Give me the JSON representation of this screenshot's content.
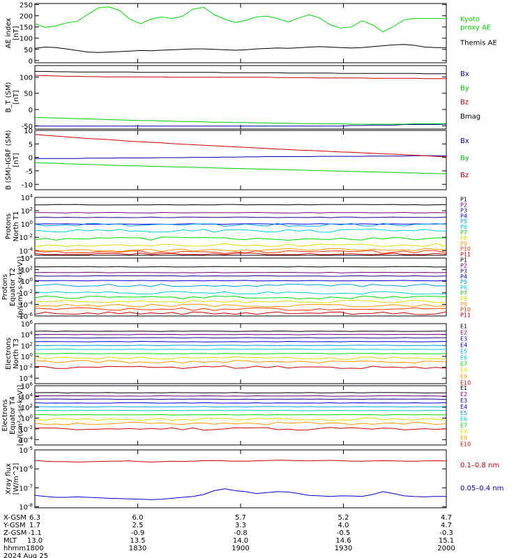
{
  "chart_data": [
    {
      "type": "line",
      "ylabel": "AE index\n[nT]",
      "yticks": [
        "250",
        "200",
        "150",
        "100",
        "50",
        "0"
      ],
      "ylim": [
        -10,
        255
      ],
      "series": [
        {
          "name": "Kyoto\nproxy AE",
          "color": "#00dd00",
          "values": [
            165,
            148,
            155,
            168,
            175,
            205,
            235,
            240,
            225,
            185,
            165,
            185,
            195,
            188,
            198,
            230,
            238,
            205,
            185,
            170,
            180,
            195,
            198,
            188,
            172,
            190,
            205,
            190,
            160,
            145,
            150,
            178,
            160,
            128,
            152,
            182,
            188,
            188,
            188,
            188
          ]
        },
        {
          "name": "Themis AE",
          "color": "#000000",
          "values": [
            55,
            60,
            58,
            52,
            45,
            38,
            36,
            38,
            40,
            42,
            45,
            44,
            46,
            48,
            50,
            52,
            52,
            50,
            48,
            46,
            48,
            52,
            54,
            56,
            55,
            57,
            60,
            62,
            60,
            58,
            56,
            58,
            62,
            66,
            70,
            72,
            68,
            60,
            58,
            58
          ]
        }
      ]
    },
    {
      "type": "line",
      "ylabel": "B_T (SM)\n[nT]",
      "yticks": [
        "100",
        "50",
        "0",
        "-50"
      ],
      "ylim": [
        -60,
        135
      ],
      "series": [
        {
          "name": "Bx",
          "color": "#0000aa",
          "values": [
            -51,
            -51,
            -51,
            -51,
            -51,
            -51,
            -51,
            -51,
            -51,
            -51,
            -51,
            -51,
            -51,
            -51,
            -51,
            -51,
            -51,
            -51,
            -51,
            -51,
            -51,
            -51,
            -51,
            -51,
            -51,
            -51,
            -51,
            -51,
            -51,
            -51,
            -49,
            -49,
            -48,
            -48,
            -48,
            -46,
            -46,
            -46,
            -46,
            -45
          ]
        },
        {
          "name": "By",
          "color": "#00cc00",
          "values": [
            -24,
            -25,
            -26,
            -27,
            -28,
            -29,
            -30,
            -31,
            -32,
            -33,
            -34,
            -34,
            -35,
            -36,
            -37,
            -37,
            -38,
            -39,
            -39,
            -40,
            -40,
            -41,
            -41,
            -42,
            -42,
            -43,
            -43,
            -44,
            -44,
            -44,
            -45,
            -45,
            -45,
            -45,
            -45,
            -45,
            -44,
            -44,
            -44,
            -43
          ]
        },
        {
          "name": "Bz",
          "color": "#cc0000",
          "values": [
            105,
            104,
            103,
            102,
            102,
            101,
            101,
            100,
            100,
            100,
            100,
            100,
            100,
            99,
            99,
            99,
            99,
            99,
            99,
            99,
            99,
            99,
            99,
            98,
            98,
            98,
            98,
            97,
            97,
            97,
            97,
            97,
            96,
            96,
            96,
            96,
            96,
            95,
            95,
            95
          ]
        },
        {
          "name": "Bmag",
          "color": "#000000",
          "values": [
            117,
            117,
            116,
            116,
            115,
            115,
            115,
            115,
            115,
            115,
            114,
            114,
            114,
            114,
            114,
            114,
            114,
            114,
            113,
            113,
            113,
            113,
            113,
            113,
            112,
            112,
            112,
            112,
            112,
            111,
            111,
            111,
            111,
            111,
            111,
            111,
            111,
            110,
            110,
            110
          ]
        }
      ]
    },
    {
      "type": "line",
      "ylabel": "B (SM)-IGRF (SM)\n[nT]",
      "yticks": [
        "10",
        "5",
        "0",
        "-5",
        "-10"
      ],
      "ylim": [
        -12,
        10
      ],
      "series": [
        {
          "name": "Bx",
          "color": "#0000aa",
          "values": [
            -0.4,
            -0.4,
            -0.4,
            -0.4,
            -0.4,
            -0.3,
            -0.3,
            -0.3,
            -0.2,
            -0.2,
            -0.2,
            -0.2,
            -0.1,
            -0.1,
            -0.1,
            0,
            0,
            0,
            0.1,
            0.1,
            0.2,
            0.2,
            0.3,
            0.3,
            0.3,
            0.3,
            0.3,
            0.4,
            0.4,
            0.4,
            0.4,
            0.4,
            0.5,
            0.5,
            0.5,
            0.5,
            0.6,
            0.6,
            0.6,
            0.6
          ]
        },
        {
          "name": "By",
          "color": "#00cc00",
          "values": [
            -2,
            -2.1,
            -2.2,
            -2.4,
            -2.5,
            -2.6,
            -2.7,
            -2.9,
            -3,
            -3.1,
            -3.2,
            -3.3,
            -3.4,
            -3.5,
            -3.6,
            -3.7,
            -3.8,
            -3.9,
            -4,
            -4.1,
            -4.2,
            -4.3,
            -4.4,
            -4.5,
            -4.6,
            -4.7,
            -4.8,
            -4.9,
            -5,
            -5.1,
            -5.2,
            -5.3,
            -5.4,
            -5.5,
            -5.6,
            -5.7,
            -5.8,
            -5.9,
            -6,
            -6.1
          ]
        },
        {
          "name": "Bz",
          "color": "#cc0000",
          "values": [
            8.5,
            8.2,
            7.9,
            7.6,
            7.3,
            7,
            6.8,
            6.6,
            6.3,
            6,
            5.8,
            5.6,
            5.4,
            5.1,
            4.9,
            4.7,
            4.5,
            4.3,
            4.1,
            3.9,
            3.7,
            3.5,
            3.3,
            3.1,
            2.9,
            2.7,
            2.6,
            2.4,
            2.2,
            2,
            1.9,
            1.7,
            1.5,
            1.3,
            1.2,
            1,
            0.8,
            0.6,
            0.4,
            0.2
          ]
        }
      ]
    },
    {
      "type": "line",
      "scale": "log",
      "ylabel": "Protons\nNorth T1",
      "yticks": [
        "10^4",
        "10^2",
        "10^0",
        "10^-2",
        "10^-4"
      ],
      "ylim": [
        -4.7,
        4
      ],
      "series": [
        {
          "name": "P1",
          "color": "#000000",
          "level": 2.9
        },
        {
          "name": "P2",
          "color": "#7a0080",
          "level": 1.7
        },
        {
          "name": "P3",
          "color": "#1a0090",
          "level": 1.0
        },
        {
          "name": "P4",
          "color": "#0000dd",
          "level": 0.0
        },
        {
          "name": "P5",
          "color": "#00a0e0",
          "level": -0.1
        },
        {
          "name": "P6",
          "color": "#00d0d0",
          "level": -1.0
        },
        {
          "name": "P7",
          "color": "#00dd00",
          "level": -2.2
        },
        {
          "name": "P8",
          "color": "#dddd00",
          "level": -3.2
        },
        {
          "name": "P9",
          "color": "#ff9900",
          "level": -3.9
        },
        {
          "name": "P10",
          "color": "#ff3300",
          "level": -4.2
        },
        {
          "name": "P11",
          "color": "#cc0000",
          "level": -4.6
        }
      ]
    },
    {
      "type": "line",
      "scale": "log",
      "ylabel": "Protons\nEquator T2\n[p/(cm²-s-sr-keV)]",
      "yticks": [
        "10^4",
        "10^2",
        "10^0",
        "10^-2",
        "10^-4",
        "10^-6"
      ],
      "ylim": [
        -6,
        4
      ],
      "series": [
        {
          "name": "P1",
          "color": "#000000",
          "level": 2.5
        },
        {
          "name": "P2",
          "color": "#7a0080",
          "level": 1.5
        },
        {
          "name": "P3",
          "color": "#1a0090",
          "level": 0.9
        },
        {
          "name": "P4",
          "color": "#0000dd",
          "level": 0.1
        },
        {
          "name": "P5",
          "color": "#00a0e0",
          "level": -0.7
        },
        {
          "name": "P6",
          "color": "#00d0d0",
          "level": -2.0
        },
        {
          "name": "P7",
          "color": "#00dd00",
          "level": -2.8
        },
        {
          "name": "P8",
          "color": "#dddd00",
          "level": -3.5
        },
        {
          "name": "P9",
          "color": "#ff9900",
          "level": -4.2
        },
        {
          "name": "P10",
          "color": "#ff3300",
          "level": -4.8
        },
        {
          "name": "P11",
          "color": "#cc0000",
          "level": -5.5
        }
      ]
    },
    {
      "type": "line",
      "scale": "log",
      "ylabel": "Electrons\nNorth T3",
      "yticks": [
        "10^6",
        "10^4",
        "10^2",
        "10^0",
        "10^-2",
        "10^-4"
      ],
      "ylim": [
        -5,
        6
      ],
      "series": [
        {
          "name": "E1",
          "color": "#000000",
          "level": 4.6
        },
        {
          "name": "E2",
          "color": "#7a0080",
          "level": 4.0
        },
        {
          "name": "E3",
          "color": "#1a0090",
          "level": 3.4
        },
        {
          "name": "E4",
          "color": "#0000dd",
          "level": 2.7
        },
        {
          "name": "E5",
          "color": "#00a0e0",
          "level": 2.0
        },
        {
          "name": "E6",
          "color": "#00d0d0",
          "level": 1.3
        },
        {
          "name": "E7",
          "color": "#00dd00",
          "level": 0.5
        },
        {
          "name": "E8",
          "color": "#dddd00",
          "level": -0.3
        },
        {
          "name": "E9",
          "color": "#ff9900",
          "level": -1.0
        },
        {
          "name": "E10",
          "color": "#cc0000",
          "level": -2.0
        }
      ]
    },
    {
      "type": "line",
      "scale": "log",
      "ylabel": "Electrons\nEquator T4\n[e/(cm²-s-sr-keV)]",
      "yticks": [
        "10^6",
        "10^4",
        "10^2",
        "10^0",
        "10^-2",
        "10^-4"
      ],
      "ylim": [
        -5,
        6
      ],
      "series": [
        {
          "name": "E1",
          "color": "#000000",
          "level": 4.7
        },
        {
          "name": "E2",
          "color": "#7a0080",
          "level": 4.1
        },
        {
          "name": "E3",
          "color": "#1a0090",
          "level": 3.5
        },
        {
          "name": "E4",
          "color": "#0000dd",
          "level": 2.8
        },
        {
          "name": "E5",
          "color": "#00a0e0",
          "level": 2.1
        },
        {
          "name": "E6",
          "color": "#00d0d0",
          "level": 1.4
        },
        {
          "name": "E7",
          "color": "#00dd00",
          "level": 0.6
        },
        {
          "name": "E8",
          "color": "#dddd00",
          "level": -0.2
        },
        {
          "name": "E9",
          "color": "#ff9900",
          "level": -1.0
        },
        {
          "name": "E10",
          "color": "#cc0000",
          "level": -2.0
        }
      ]
    },
    {
      "type": "line",
      "scale": "log",
      "ylabel": "Xray flux\n[W/m^2]",
      "yticks": [
        "10^-5",
        "10^-6",
        "10^-7",
        "10^-8"
      ],
      "ylim": [
        -8.05,
        -5
      ],
      "series": [
        {
          "name": "0.1–0.8 nm",
          "color": "#cc0000",
          "values": [
            -5.55,
            -5.6,
            -5.62,
            -5.62,
            -5.64,
            -5.63,
            -5.61,
            -5.6,
            -5.59,
            -5.58,
            -5.62,
            -5.64,
            -5.62,
            -5.6,
            -5.61,
            -5.59,
            -5.57,
            -5.56,
            -5.58,
            -5.6,
            -5.59,
            -5.58,
            -5.56,
            -5.54,
            -5.55,
            -5.57,
            -5.58,
            -5.56,
            -5.55,
            -5.57,
            -5.59,
            -5.6,
            -5.58,
            -5.57,
            -5.58,
            -5.59,
            -5.6,
            -5.58,
            -5.57,
            -5.58
          ]
        },
        {
          "name": "0.05–0.4 nm",
          "color": "#0000cc",
          "values": [
            -7.4,
            -7.45,
            -7.5,
            -7.5,
            -7.47,
            -7.5,
            -7.52,
            -7.55,
            -7.56,
            -7.58,
            -7.6,
            -7.62,
            -7.6,
            -7.55,
            -7.5,
            -7.45,
            -7.35,
            -7.15,
            -7.05,
            -7.15,
            -7.2,
            -7.3,
            -7.25,
            -7.2,
            -7.22,
            -7.3,
            -7.4,
            -7.42,
            -7.45,
            -7.42,
            -7.43,
            -7.45,
            -7.35,
            -7.2,
            -7.3,
            -7.42,
            -7.46,
            -7.47,
            -7.45,
            -7.45
          ]
        }
      ]
    }
  ],
  "x_axis": {
    "ticks": [
      "1800",
      "1830",
      "1900",
      "1930",
      "2000"
    ],
    "rows": [
      {
        "label": "X-GSM",
        "values": [
          "6.3",
          "6.0",
          "5.7",
          "5.2",
          "4.7"
        ]
      },
      {
        "label": "Y-GSM",
        "values": [
          "1.7",
          "2.5",
          "3.3",
          "4.0",
          "4.7"
        ]
      },
      {
        "label": "Z-GSM",
        "values": [
          "-1.1",
          "-0.9",
          "-0.8",
          "-0.5",
          "-0.3"
        ]
      },
      {
        "label": "MLT",
        "values": [
          "13.0",
          "13.5",
          "14.0",
          "14.6",
          "15.1"
        ]
      },
      {
        "label": "hhmm",
        "values": [
          "1800",
          "1830",
          "1900",
          "1930",
          "2000"
        ]
      }
    ],
    "date": "2024 Aug 25"
  }
}
